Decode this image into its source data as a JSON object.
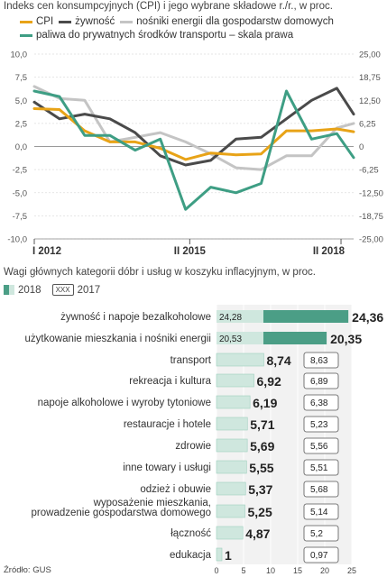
{
  "line_chart": {
    "title": "Indeks cen konsumpcyjnych (CPI) i jego wybrane składowe r./r., w proc.",
    "legend": [
      {
        "key": "cpi",
        "label": "CPI",
        "color": "#e8a317"
      },
      {
        "key": "food",
        "label": "żywność",
        "color": "#4a4a4a"
      },
      {
        "key": "energy",
        "label": "nośniki energii dla gospodarstw domowych",
        "color": "#c4c4c4"
      },
      {
        "key": "fuel",
        "label": "paliwa do prywatnych środków transportu – skala prawa",
        "color": "#3e9e84"
      }
    ],
    "left_ticks": [
      "10,0",
      "7,5",
      "5,0",
      "2,5",
      "0,0",
      "-2,5",
      "-5,0",
      "-7,5",
      "-10,0"
    ],
    "right_ticks": [
      "25,00",
      "18,75",
      "12,50",
      "6,25",
      "0",
      "-6,25",
      "-12,50",
      "-18,75",
      "-25,00"
    ],
    "x_ticks": [
      "I 2012",
      "II 2015",
      "II 2018"
    ]
  },
  "chart_data": [
    {
      "type": "line",
      "title": "Indeks cen konsumpcyjnych (CPI) i jego wybrane składowe r./r., w proc.",
      "x": [
        "2012-01",
        "2012-07",
        "2013-01",
        "2013-07",
        "2014-01",
        "2014-07",
        "2015-01",
        "2015-07",
        "2016-01",
        "2016-07",
        "2017-01",
        "2017-07",
        "2018-01",
        "2018-05"
      ],
      "ylim_left": [
        -10,
        10
      ],
      "ylim_right": [
        -25,
        25
      ],
      "series": [
        {
          "name": "CPI",
          "axis": "left",
          "values": [
            4.1,
            4.0,
            1.7,
            0.5,
            0.5,
            -0.2,
            -1.4,
            -0.7,
            -0.9,
            -0.8,
            1.7,
            1.7,
            1.9,
            1.6
          ]
        },
        {
          "name": "żywność",
          "axis": "left",
          "values": [
            4.8,
            3.0,
            3.5,
            3.0,
            1.5,
            -1.0,
            -2.0,
            -1.5,
            0.8,
            1.0,
            3.0,
            5.0,
            6.3,
            3.5
          ]
        },
        {
          "name": "nośniki energii dla gospodarstw domowych",
          "axis": "left",
          "values": [
            6.5,
            5.2,
            5.0,
            0.5,
            1.0,
            1.5,
            0.5,
            -0.8,
            -2.3,
            -2.5,
            -1.0,
            -1.0,
            2.0,
            2.5
          ]
        },
        {
          "name": "paliwa do prywatnych środków transportu – skala prawa",
          "axis": "right",
          "values": [
            15.0,
            13.5,
            3.0,
            3.0,
            -1.0,
            2.0,
            -17.0,
            -11.0,
            -12.5,
            -10.0,
            15.0,
            2.0,
            3.5,
            -3.0
          ]
        }
      ]
    },
    {
      "type": "bar",
      "title": "Wagi głównych kategorii dóbr i usług w koszyku inflacyjnym, w proc.",
      "categories": [
        "żywność i napoje bezalkoholowe",
        "użytkowanie mieszkania i nośniki energii",
        "transport",
        "rekreacja i kultura",
        "napoje alkoholowe i wyroby tytoniowe",
        "restauracje i hotele",
        "zdrowie",
        "inne towary i usługi",
        "odzież i obuwie",
        "wyposażenie mieszkania, prowadzenie gospodarstwa domowego",
        "łączność",
        "edukacja"
      ],
      "series": [
        {
          "name": "2018",
          "values": [
            24.36,
            20.35,
            8.74,
            6.92,
            6.19,
            5.71,
            5.69,
            5.55,
            5.37,
            5.25,
            4.87,
            1
          ]
        },
        {
          "name": "2017",
          "values": [
            24.28,
            20.53,
            8.63,
            6.89,
            6.38,
            5.23,
            5.56,
            5.51,
            5.68,
            5.14,
            5.2,
            0.97
          ]
        }
      ],
      "xlim": [
        0,
        25
      ],
      "x_ticks": [
        "0",
        "5",
        "10",
        "15",
        "20",
        "25"
      ]
    }
  ],
  "bar_chart": {
    "title": "Wagi głównych kategorii dóbr i usług w koszyku inflacyjnym, w proc.",
    "legend_2018": "2018",
    "legend_2017_box": "XXX",
    "legend_2017": "2017",
    "label_2018": [
      "24,36",
      "20,35",
      "8,74",
      "6,92",
      "6,19",
      "5,71",
      "5,69",
      "5,55",
      "5,37",
      "5,25",
      "4,87",
      "1"
    ],
    "label_2017": [
      "24,28",
      "20,53",
      "8,63",
      "6,89",
      "6,38",
      "5,23",
      "5,56",
      "5,51",
      "5,68",
      "5,14",
      "5,2",
      "0,97"
    ],
    "categories": [
      "żywność i napoje bezalkoholowe",
      "użytkowanie mieszkania i nośniki energii",
      "transport",
      "rekreacja i kultura",
      "napoje alkoholowe i wyroby tytoniowe",
      "restauracje i hotele",
      "zdrowie",
      "inne towary i usługi",
      "odzież i obuwie",
      "wyposażenie mieszkania,",
      "łączność",
      "edukacja"
    ],
    "category_line2": "prowadzenie gospodarstwa domowego",
    "colors": {
      "bar2018": "#4b9e86",
      "bar2017": "#cfe7de"
    }
  },
  "footer": "Źródło: GUS"
}
